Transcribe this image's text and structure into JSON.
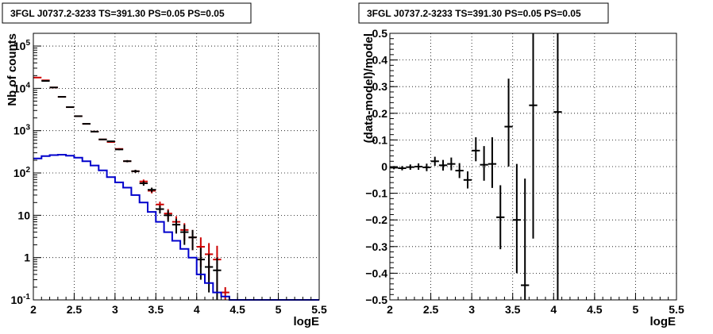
{
  "chart_data": [
    {
      "type": "line",
      "title": "3FGL J0737.2-3233 TS=391.30 PS=0.05 PS=0.05",
      "xlabel": "logE",
      "ylabel": "Nb of counts",
      "xlim": [
        2,
        5.5
      ],
      "ylim": [
        0.1,
        200000
      ],
      "yscale": "log",
      "grid": true,
      "x_ticks": [
        "2",
        "2.5",
        "3",
        "3.5",
        "4",
        "4.5",
        "5",
        "5.5"
      ],
      "y_ticks": [
        "10^{-1}",
        "1",
        "10",
        "10^{2}",
        "10^{3}",
        "10^{4}",
        "10^{5}"
      ],
      "bin_edges": [
        2.0,
        2.1,
        2.2,
        2.3,
        2.4,
        2.5,
        2.6,
        2.7,
        2.8,
        2.9,
        3.0,
        3.1,
        3.2,
        3.3,
        3.4,
        3.5,
        3.6,
        3.7,
        3.8,
        3.9,
        4.0,
        4.1,
        4.2,
        4.3,
        4.4,
        4.5,
        4.6,
        4.7,
        4.8,
        4.9,
        5.0,
        5.1,
        5.2,
        5.3,
        5.4,
        5.5
      ],
      "series": [
        {
          "color": "#cc0000",
          "style": "error-markers",
          "x": [
            2.05,
            2.15,
            2.25,
            2.35,
            2.45,
            2.55,
            2.65,
            2.75,
            2.85,
            2.95,
            3.05,
            3.15,
            3.25,
            3.35,
            3.45,
            3.55,
            3.65,
            3.75,
            3.85,
            3.95,
            4.05,
            4.15,
            4.25,
            4.35
          ],
          "values": [
            18000,
            15500,
            10500,
            6300,
            3600,
            2200,
            1450,
            950,
            620,
            540,
            370,
            190,
            110,
            63,
            38,
            18,
            11,
            7,
            4.5,
            3,
            1.8,
            1.2,
            0.9,
            0.15
          ],
          "err_low": [
            100,
            90,
            80,
            60,
            45,
            35,
            30,
            25,
            20,
            18,
            15,
            11,
            9,
            7,
            5,
            3,
            3,
            2.5,
            2,
            1.5,
            1.2,
            0.9,
            0.75,
            0.05
          ],
          "err_high": [
            100,
            90,
            80,
            60,
            45,
            35,
            30,
            25,
            20,
            18,
            15,
            11,
            9,
            7,
            5,
            3,
            3,
            2.5,
            2,
            1.5,
            1.2,
            1.0,
            1.0,
            0.05
          ]
        },
        {
          "color": "#000000",
          "style": "error-markers",
          "x": [
            2.15,
            2.25,
            2.35,
            2.45,
            2.55,
            2.65,
            2.75,
            2.85,
            2.95,
            3.05,
            3.15,
            3.25,
            3.35,
            3.45,
            3.55,
            3.65,
            3.75,
            3.85,
            3.95,
            4.05,
            4.15,
            4.25
          ],
          "values": [
            15000,
            10500,
            6300,
            3600,
            2200,
            1450,
            950,
            620,
            560,
            360,
            190,
            110,
            57,
            40,
            14,
            10,
            6,
            4,
            3,
            0.9,
            0.6,
            0.5
          ],
          "err_low": [
            100,
            80,
            60,
            45,
            35,
            30,
            25,
            20,
            18,
            15,
            11,
            9,
            7,
            5,
            3,
            3,
            2.3,
            2,
            1.5,
            0.6,
            0.45,
            0.4
          ],
          "err_high": [
            100,
            80,
            60,
            45,
            35,
            30,
            25,
            20,
            18,
            15,
            11,
            9,
            7,
            5,
            3,
            3,
            2.3,
            2,
            1.5,
            0.8,
            0.6,
            0.5
          ]
        },
        {
          "color": "#0000cc",
          "style": "step",
          "values": [
            220,
            250,
            265,
            270,
            255,
            230,
            190,
            150,
            115,
            80,
            60,
            45,
            30,
            20,
            12,
            7,
            4,
            2.5,
            1.6,
            1.0,
            0.4,
            0.25,
            0.15,
            0.12,
            0.1,
            0.1,
            0.1,
            0.1,
            0.1,
            0.1,
            0.1,
            0.1,
            0.1,
            0.1,
            0.1
          ]
        }
      ]
    },
    {
      "type": "scatter",
      "title": "3FGL J0737.2-3233 TS=391.30 PS=0.05 PS=0.05",
      "xlabel": "logE",
      "ylabel": "(data-model)/model",
      "xlim": [
        2,
        5.5
      ],
      "ylim": [
        -0.5,
        0.5
      ],
      "grid": true,
      "x_ticks": [
        "2",
        "2.5",
        "3",
        "3.5",
        "4",
        "4.5",
        "5",
        "5.5"
      ],
      "y_ticks": [
        "-0.5",
        "-0.4",
        "-0.3",
        "-0.2",
        "-0.1",
        "0",
        "0.1",
        "0.2",
        "0.3",
        "0.4",
        "0.5"
      ],
      "series": [
        {
          "color": "#000000",
          "style": "error-markers",
          "x": [
            2.05,
            2.15,
            2.25,
            2.35,
            2.45,
            2.55,
            2.65,
            2.75,
            2.85,
            2.95,
            3.05,
            3.15,
            3.25,
            3.35,
            3.45,
            3.55,
            3.65,
            3.75,
            4.05
          ],
          "values": [
            -0.004,
            -0.006,
            -0.002,
            0.0,
            -0.003,
            0.02,
            0.005,
            0.01,
            -0.015,
            -0.05,
            0.06,
            0.007,
            0.01,
            -0.19,
            0.15,
            -0.2,
            -0.445,
            0.23,
            0.205
          ],
          "err_low": [
            0.006,
            0.008,
            0.01,
            0.012,
            0.014,
            0.017,
            0.02,
            0.024,
            0.028,
            0.032,
            0.04,
            0.06,
            0.09,
            0.12,
            0.15,
            0.2,
            0.1,
            0.5,
            0.9
          ],
          "err_high": [
            0.006,
            0.008,
            0.01,
            0.012,
            0.014,
            0.017,
            0.02,
            0.024,
            0.028,
            0.032,
            0.05,
            0.07,
            0.1,
            0.12,
            0.18,
            0.21,
            0.4,
            0.5,
            0.9
          ],
          "x_halfwidth": 0.05
        }
      ]
    }
  ]
}
